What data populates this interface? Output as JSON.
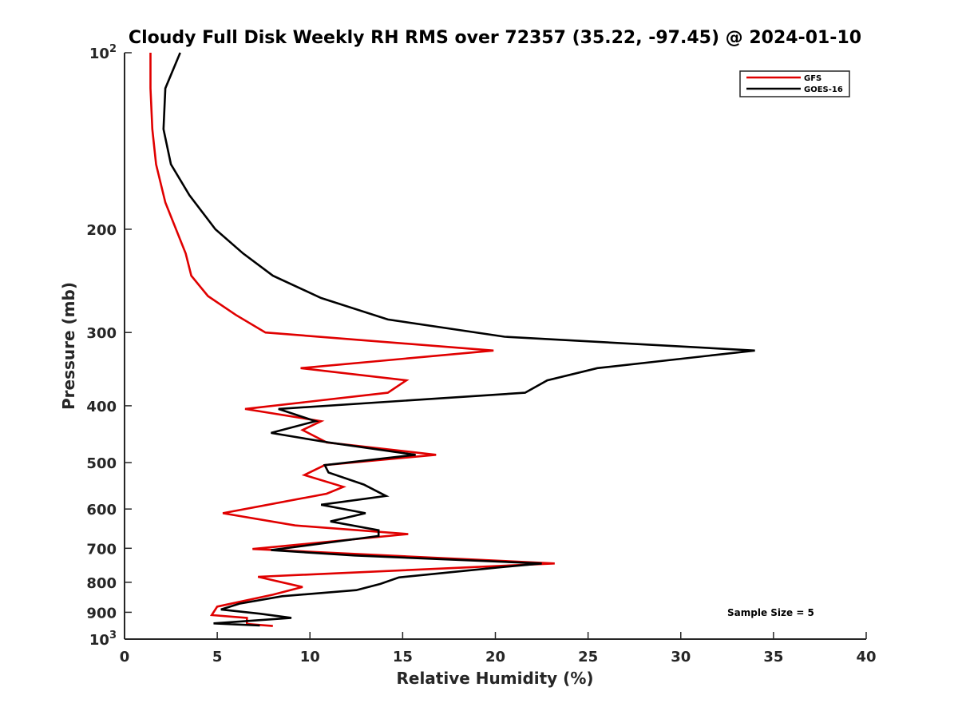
{
  "chart_data": {
    "type": "line",
    "title": "Cloudy Full Disk Weekly RH RMS over 72357 (35.22, -97.45) @ 2024-01-10",
    "xlabel": "Relative Humidity (%)",
    "ylabel": "Pressure (mb)",
    "xlim": [
      0,
      40
    ],
    "ylim": [
      100,
      1000
    ],
    "y_scale": "log",
    "y_reversed": true,
    "x_ticks": [
      "0",
      "5",
      "10",
      "15",
      "20",
      "25",
      "30",
      "35",
      "40"
    ],
    "y_ticks": [
      {
        "value": 100,
        "base": "10",
        "exp": "2"
      },
      {
        "value": 200,
        "label": "200"
      },
      {
        "value": 300,
        "label": "300"
      },
      {
        "value": 400,
        "label": "400"
      },
      {
        "value": 500,
        "label": "500"
      },
      {
        "value": 600,
        "label": "600"
      },
      {
        "value": 700,
        "label": "700"
      },
      {
        "value": 800,
        "label": "800"
      },
      {
        "value": 900,
        "label": "900"
      },
      {
        "value": 1000,
        "base": "10",
        "exp": "3"
      }
    ],
    "legend_position": "top-right",
    "annotation": "Sample Size = 5",
    "series": [
      {
        "name": "GFS",
        "color": "#e00000",
        "points": [
          {
            "x": 1.4,
            "y": 100
          },
          {
            "x": 1.4,
            "y": 115
          },
          {
            "x": 1.5,
            "y": 135
          },
          {
            "x": 1.7,
            "y": 155
          },
          {
            "x": 2.2,
            "y": 180
          },
          {
            "x": 3.3,
            "y": 220
          },
          {
            "x": 3.6,
            "y": 240
          },
          {
            "x": 4.5,
            "y": 260
          },
          {
            "x": 6.0,
            "y": 280
          },
          {
            "x": 7.6,
            "y": 300
          },
          {
            "x": 19.9,
            "y": 322
          },
          {
            "x": 9.5,
            "y": 345
          },
          {
            "x": 15.2,
            "y": 362
          },
          {
            "x": 14.2,
            "y": 380
          },
          {
            "x": 6.5,
            "y": 405
          },
          {
            "x": 10.6,
            "y": 425
          },
          {
            "x": 9.6,
            "y": 440
          },
          {
            "x": 10.9,
            "y": 462
          },
          {
            "x": 16.8,
            "y": 485
          },
          {
            "x": 10.8,
            "y": 505
          },
          {
            "x": 9.7,
            "y": 525
          },
          {
            "x": 11.8,
            "y": 550
          },
          {
            "x": 10.9,
            "y": 565
          },
          {
            "x": 5.3,
            "y": 610
          },
          {
            "x": 9.2,
            "y": 640
          },
          {
            "x": 15.3,
            "y": 662
          },
          {
            "x": 6.9,
            "y": 702
          },
          {
            "x": 23.2,
            "y": 743
          },
          {
            "x": 7.2,
            "y": 783
          },
          {
            "x": 9.6,
            "y": 815
          },
          {
            "x": 8.0,
            "y": 840
          },
          {
            "x": 5.0,
            "y": 880
          },
          {
            "x": 4.7,
            "y": 910
          },
          {
            "x": 6.6,
            "y": 920
          },
          {
            "x": 6.6,
            "y": 942
          },
          {
            "x": 8.0,
            "y": 950
          }
        ]
      },
      {
        "name": "GOES-16",
        "color": "#000000",
        "points": [
          {
            "x": 3.0,
            "y": 100
          },
          {
            "x": 2.2,
            "y": 115
          },
          {
            "x": 2.1,
            "y": 135
          },
          {
            "x": 2.5,
            "y": 155
          },
          {
            "x": 3.5,
            "y": 175
          },
          {
            "x": 4.9,
            "y": 200
          },
          {
            "x": 6.4,
            "y": 220
          },
          {
            "x": 8.0,
            "y": 240
          },
          {
            "x": 10.6,
            "y": 262
          },
          {
            "x": 14.2,
            "y": 285
          },
          {
            "x": 20.5,
            "y": 305
          },
          {
            "x": 34.0,
            "y": 322
          },
          {
            "x": 25.5,
            "y": 345
          },
          {
            "x": 22.8,
            "y": 362
          },
          {
            "x": 21.6,
            "y": 380
          },
          {
            "x": 8.3,
            "y": 405
          },
          {
            "x": 10.3,
            "y": 425
          },
          {
            "x": 7.9,
            "y": 445
          },
          {
            "x": 11.0,
            "y": 462
          },
          {
            "x": 15.7,
            "y": 485
          },
          {
            "x": 10.8,
            "y": 505
          },
          {
            "x": 11.0,
            "y": 520
          },
          {
            "x": 12.9,
            "y": 545
          },
          {
            "x": 14.1,
            "y": 570
          },
          {
            "x": 10.6,
            "y": 590
          },
          {
            "x": 13.0,
            "y": 610
          },
          {
            "x": 11.1,
            "y": 630
          },
          {
            "x": 13.7,
            "y": 652
          },
          {
            "x": 13.7,
            "y": 667
          },
          {
            "x": 7.9,
            "y": 705
          },
          {
            "x": 12.4,
            "y": 720
          },
          {
            "x": 22.5,
            "y": 743
          },
          {
            "x": 20.1,
            "y": 755
          },
          {
            "x": 14.8,
            "y": 785
          },
          {
            "x": 13.8,
            "y": 805
          },
          {
            "x": 12.5,
            "y": 825
          },
          {
            "x": 8.5,
            "y": 845
          },
          {
            "x": 6.2,
            "y": 870
          },
          {
            "x": 5.2,
            "y": 890
          },
          {
            "x": 7.3,
            "y": 905
          },
          {
            "x": 9.0,
            "y": 920
          },
          {
            "x": 4.8,
            "y": 940
          },
          {
            "x": 7.3,
            "y": 948
          }
        ]
      }
    ]
  }
}
